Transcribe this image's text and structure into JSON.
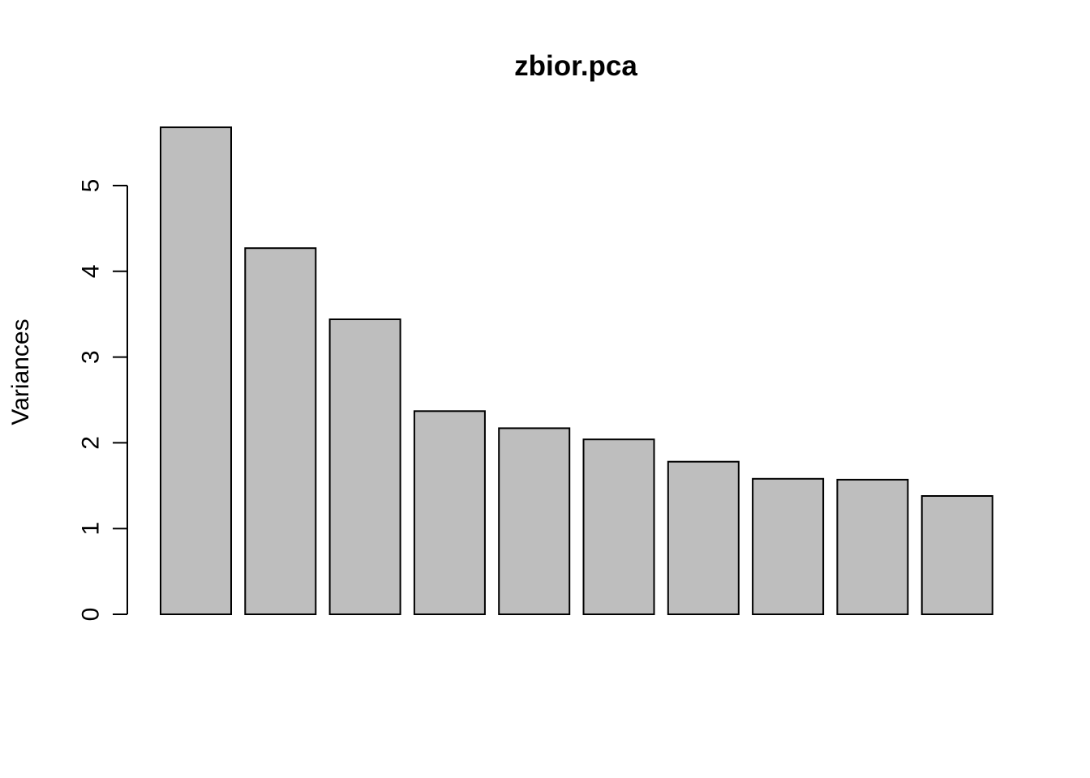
{
  "chart_data": {
    "type": "bar",
    "title": "zbior.pca",
    "xlabel": "",
    "ylabel": "Variances",
    "values": [
      5.68,
      4.27,
      3.44,
      2.37,
      2.17,
      2.04,
      1.78,
      1.58,
      1.57,
      1.38
    ],
    "ylim": [
      0,
      5.7
    ],
    "yticks": [
      0,
      1,
      2,
      3,
      4,
      5
    ],
    "bar_color": "#bebebe",
    "border_color": "#000000",
    "grid": false,
    "legend": "none"
  }
}
